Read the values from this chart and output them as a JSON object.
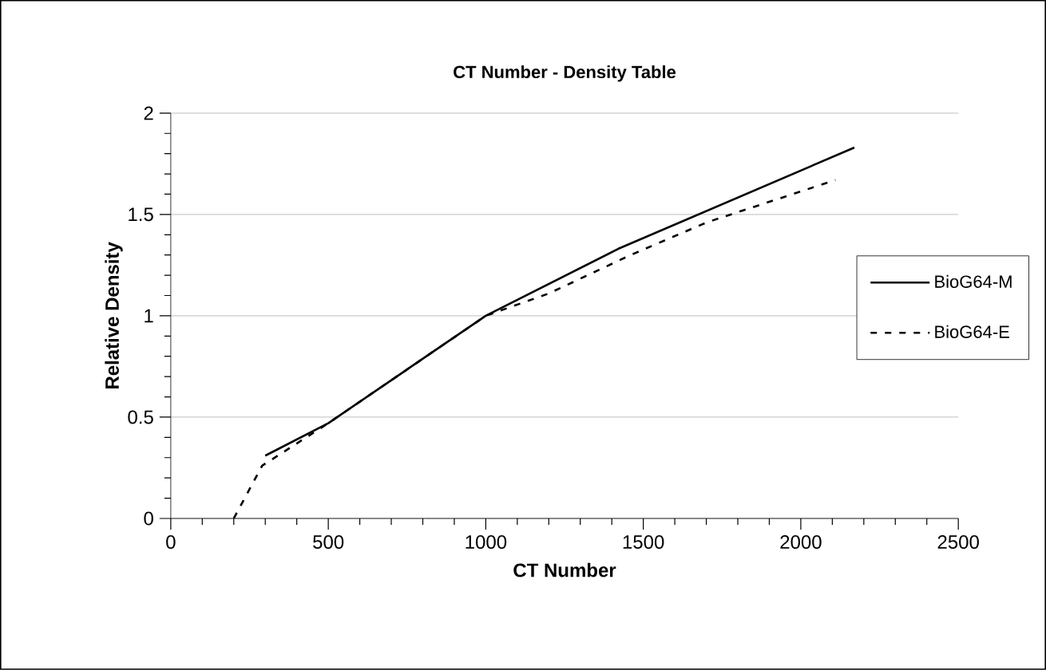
{
  "chart_data": {
    "type": "line",
    "title": "CT Number - Density Table",
    "xlabel": "CT Number",
    "ylabel": "Relative Density",
    "xlim": [
      0,
      2500
    ],
    "xticks": [
      0,
      500,
      1000,
      1500,
      2000,
      2500
    ],
    "ylim": [
      0,
      2
    ],
    "yticks": [
      0,
      0.5,
      1,
      1.5,
      2
    ],
    "grid": "y",
    "legend": "right",
    "marker": "none",
    "series": [
      {
        "name": "BioG64-M",
        "color": "#000000",
        "line_style": "solid",
        "x": [
          300,
          500,
          1000,
          1420,
          2170
        ],
        "values": [
          0.31,
          0.47,
          1.0,
          1.33,
          1.83
        ]
      },
      {
        "name": "BioG64-E",
        "color": "#000000",
        "line_style": "dashed",
        "x": [
          200,
          290,
          500,
          1000,
          1200,
          1460,
          1700,
          2110
        ],
        "values": [
          0,
          0.26,
          0.47,
          1.0,
          1.11,
          1.3,
          1.46,
          1.67
        ]
      }
    ]
  }
}
